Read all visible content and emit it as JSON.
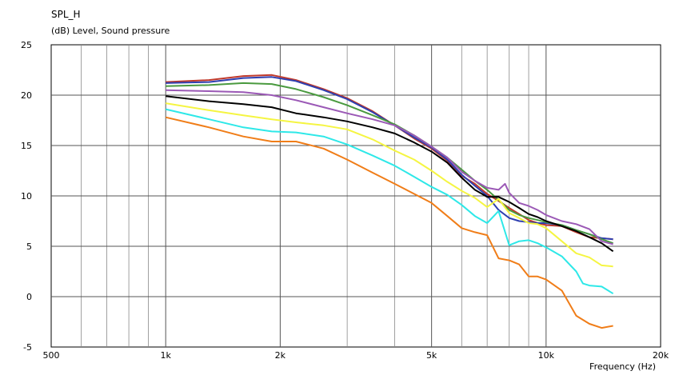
{
  "chart_data": {
    "type": "line",
    "title": "SPL_H",
    "ylabel": "(dB)  Level, Sound pressure",
    "xlabel": "Frequency  (Hz)",
    "xscale": "log",
    "xlim": [
      500,
      20000
    ],
    "ylim": [
      -5,
      25
    ],
    "grid": true,
    "x_ticks": [
      500,
      1000,
      2000,
      5000,
      10000,
      20000
    ],
    "x_tick_labels": [
      "500",
      "1k",
      "2k",
      "5k",
      "10k",
      "20k"
    ],
    "y_ticks": [
      -5,
      0,
      5,
      10,
      15,
      20,
      25
    ],
    "y_tick_labels": [
      "-5",
      "0",
      "5",
      "10",
      "15",
      "20",
      "25"
    ],
    "series": [
      {
        "color": "#c0392b",
        "points": [
          [
            1000,
            21.3
          ],
          [
            1300,
            21.5
          ],
          [
            1600,
            21.9
          ],
          [
            1900,
            22.0
          ],
          [
            2200,
            21.5
          ],
          [
            2600,
            20.6
          ],
          [
            3000,
            19.7
          ],
          [
            3500,
            18.4
          ],
          [
            4000,
            17.0
          ],
          [
            4500,
            15.7
          ],
          [
            5000,
            14.7
          ],
          [
            5500,
            13.5
          ],
          [
            6000,
            12.0
          ],
          [
            6500,
            11.2
          ],
          [
            7000,
            10.2
          ],
          [
            7500,
            9.5
          ],
          [
            8000,
            8.8
          ],
          [
            8500,
            8.2
          ],
          [
            9000,
            7.6
          ],
          [
            9500,
            7.3
          ],
          [
            10000,
            7.1
          ],
          [
            11000,
            7.0
          ],
          [
            12000,
            6.4
          ],
          [
            13000,
            5.9
          ],
          [
            14000,
            5.8
          ],
          [
            15000,
            5.7
          ]
        ]
      },
      {
        "color": "#2e3fb0",
        "points": [
          [
            1000,
            21.2
          ],
          [
            1300,
            21.3
          ],
          [
            1600,
            21.7
          ],
          [
            1900,
            21.8
          ],
          [
            2200,
            21.4
          ],
          [
            2600,
            20.5
          ],
          [
            3000,
            19.6
          ],
          [
            3500,
            18.3
          ],
          [
            4000,
            17.0
          ],
          [
            4500,
            15.8
          ],
          [
            5000,
            14.8
          ],
          [
            5500,
            13.6
          ],
          [
            6000,
            12.1
          ],
          [
            6500,
            11.0
          ],
          [
            7000,
            10.0
          ],
          [
            7500,
            8.6
          ],
          [
            8000,
            7.8
          ],
          [
            8500,
            7.5
          ],
          [
            9000,
            7.4
          ],
          [
            9500,
            7.3
          ],
          [
            10000,
            7.3
          ],
          [
            11000,
            7.1
          ],
          [
            12000,
            6.6
          ],
          [
            13000,
            6.2
          ],
          [
            14000,
            5.8
          ],
          [
            15000,
            5.7
          ]
        ]
      },
      {
        "color": "#4a9a3f",
        "points": [
          [
            1000,
            20.9
          ],
          [
            1300,
            21.0
          ],
          [
            1600,
            21.2
          ],
          [
            1900,
            21.1
          ],
          [
            2200,
            20.6
          ],
          [
            2600,
            19.8
          ],
          [
            3000,
            19.0
          ],
          [
            3500,
            18.0
          ],
          [
            4000,
            17.1
          ],
          [
            4500,
            16.0
          ],
          [
            5000,
            14.9
          ],
          [
            5500,
            13.8
          ],
          [
            6000,
            12.6
          ],
          [
            6500,
            11.5
          ],
          [
            7000,
            10.6
          ],
          [
            7500,
            9.6
          ],
          [
            8000,
            8.6
          ],
          [
            8500,
            8.1
          ],
          [
            9000,
            7.8
          ],
          [
            9500,
            7.6
          ],
          [
            10000,
            7.4
          ],
          [
            11000,
            7.1
          ],
          [
            12000,
            6.6
          ],
          [
            13000,
            6.2
          ],
          [
            14000,
            5.7
          ],
          [
            15000,
            5.3
          ]
        ]
      },
      {
        "color": "#9b59b6",
        "points": [
          [
            1000,
            20.5
          ],
          [
            1300,
            20.4
          ],
          [
            1600,
            20.3
          ],
          [
            1900,
            20.0
          ],
          [
            2200,
            19.5
          ],
          [
            2600,
            18.8
          ],
          [
            3000,
            18.2
          ],
          [
            3500,
            17.6
          ],
          [
            4000,
            17.0
          ],
          [
            4500,
            16.0
          ],
          [
            5000,
            14.9
          ],
          [
            5500,
            13.8
          ],
          [
            6000,
            12.4
          ],
          [
            6500,
            11.5
          ],
          [
            7000,
            10.8
          ],
          [
            7500,
            10.6
          ],
          [
            7800,
            11.2
          ],
          [
            8000,
            10.3
          ],
          [
            8500,
            9.3
          ],
          [
            9000,
            9.0
          ],
          [
            9500,
            8.6
          ],
          [
            10000,
            8.1
          ],
          [
            11000,
            7.5
          ],
          [
            12000,
            7.2
          ],
          [
            13000,
            6.7
          ],
          [
            14000,
            5.5
          ],
          [
            15000,
            5.2
          ]
        ]
      },
      {
        "color": "#000000",
        "points": [
          [
            1000,
            19.9
          ],
          [
            1300,
            19.4
          ],
          [
            1600,
            19.1
          ],
          [
            1900,
            18.8
          ],
          [
            2200,
            18.2
          ],
          [
            2600,
            17.8
          ],
          [
            3000,
            17.4
          ],
          [
            3500,
            16.8
          ],
          [
            4000,
            16.2
          ],
          [
            4500,
            15.3
          ],
          [
            5000,
            14.4
          ],
          [
            5500,
            13.3
          ],
          [
            6000,
            11.8
          ],
          [
            6500,
            10.6
          ],
          [
            7000,
            9.9
          ],
          [
            7500,
            9.9
          ],
          [
            8000,
            9.4
          ],
          [
            8500,
            8.8
          ],
          [
            9000,
            8.2
          ],
          [
            9500,
            7.9
          ],
          [
            10000,
            7.5
          ],
          [
            11000,
            7.0
          ],
          [
            12000,
            6.5
          ],
          [
            13000,
            5.9
          ],
          [
            14000,
            5.3
          ],
          [
            15000,
            4.5
          ]
        ]
      },
      {
        "color": "#f5f542",
        "points": [
          [
            1000,
            19.2
          ],
          [
            1300,
            18.5
          ],
          [
            1600,
            18.0
          ],
          [
            1900,
            17.6
          ],
          [
            2200,
            17.3
          ],
          [
            2600,
            17.0
          ],
          [
            3000,
            16.6
          ],
          [
            3500,
            15.6
          ],
          [
            4000,
            14.5
          ],
          [
            4500,
            13.6
          ],
          [
            5000,
            12.5
          ],
          [
            5500,
            11.4
          ],
          [
            6000,
            10.5
          ],
          [
            6500,
            9.8
          ],
          [
            7000,
            8.9
          ],
          [
            7500,
            9.7
          ],
          [
            8000,
            8.3
          ],
          [
            8500,
            7.8
          ],
          [
            9000,
            7.3
          ],
          [
            9500,
            7.2
          ],
          [
            10000,
            6.8
          ],
          [
            11000,
            5.5
          ],
          [
            12000,
            4.3
          ],
          [
            13000,
            3.9
          ],
          [
            14000,
            3.1
          ],
          [
            15000,
            3.0
          ]
        ]
      },
      {
        "color": "#2ee8e8",
        "points": [
          [
            1000,
            18.6
          ],
          [
            1300,
            17.6
          ],
          [
            1600,
            16.8
          ],
          [
            1900,
            16.4
          ],
          [
            2200,
            16.3
          ],
          [
            2600,
            15.9
          ],
          [
            3000,
            15.1
          ],
          [
            3500,
            14.0
          ],
          [
            4000,
            13.0
          ],
          [
            4500,
            11.9
          ],
          [
            5000,
            10.9
          ],
          [
            5500,
            10.1
          ],
          [
            6000,
            9.1
          ],
          [
            6500,
            8.0
          ],
          [
            7000,
            7.3
          ],
          [
            7500,
            8.5
          ],
          [
            8000,
            5.1
          ],
          [
            8500,
            5.5
          ],
          [
            9000,
            5.6
          ],
          [
            9500,
            5.3
          ],
          [
            10000,
            4.9
          ],
          [
            11000,
            4.0
          ],
          [
            12000,
            2.5
          ],
          [
            12500,
            1.3
          ],
          [
            13000,
            1.1
          ],
          [
            14000,
            1.0
          ],
          [
            15000,
            0.3
          ]
        ]
      },
      {
        "color": "#f07d18",
        "points": [
          [
            1000,
            17.8
          ],
          [
            1300,
            16.8
          ],
          [
            1600,
            15.9
          ],
          [
            1900,
            15.4
          ],
          [
            2200,
            15.4
          ],
          [
            2600,
            14.7
          ],
          [
            3000,
            13.6
          ],
          [
            3500,
            12.3
          ],
          [
            4000,
            11.2
          ],
          [
            4500,
            10.2
          ],
          [
            5000,
            9.3
          ],
          [
            5500,
            8.0
          ],
          [
            6000,
            6.8
          ],
          [
            6500,
            6.4
          ],
          [
            7000,
            6.1
          ],
          [
            7500,
            3.8
          ],
          [
            8000,
            3.6
          ],
          [
            8500,
            3.2
          ],
          [
            9000,
            2.0
          ],
          [
            9500,
            2.0
          ],
          [
            10000,
            1.7
          ],
          [
            11000,
            0.6
          ],
          [
            12000,
            -1.9
          ],
          [
            13000,
            -2.7
          ],
          [
            14000,
            -3.1
          ],
          [
            15000,
            -2.9
          ]
        ]
      }
    ]
  }
}
